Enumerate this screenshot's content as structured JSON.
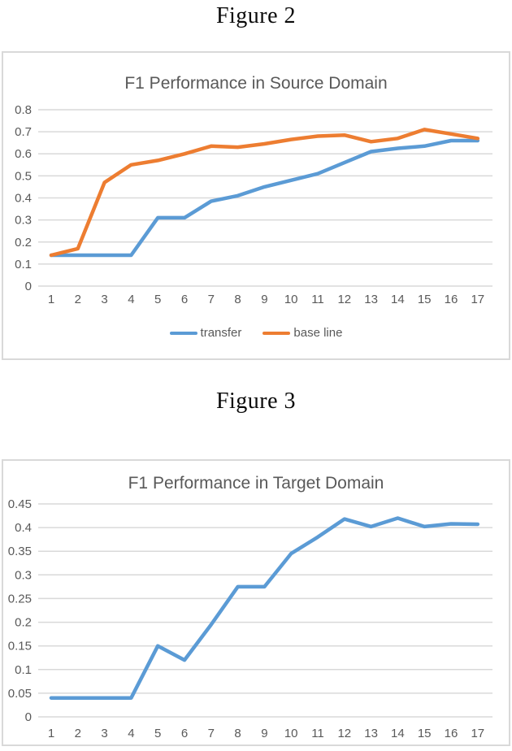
{
  "captions": {
    "figure2": "Figure 2",
    "figure3": "Figure 3"
  },
  "colors": {
    "transfer_blue": "#5B9BD5",
    "baseline_orange": "#ED7D31",
    "gridline": "#D9D9D9",
    "axis_text": "#595959",
    "title_text": "#595959",
    "chart_border": "#D9D9D9"
  },
  "chart_data": [
    {
      "type": "line",
      "title": "F1 Performance in Source Domain",
      "x": [
        1,
        2,
        3,
        4,
        5,
        6,
        7,
        8,
        9,
        10,
        11,
        12,
        13,
        14,
        15,
        16,
        17
      ],
      "series": [
        {
          "name": "transfer",
          "color": "#5B9BD5",
          "values": [
            0.14,
            0.14,
            0.14,
            0.14,
            0.31,
            0.31,
            0.385,
            0.41,
            0.45,
            0.48,
            0.51,
            0.56,
            0.61,
            0.625,
            0.635,
            0.66,
            0.66
          ]
        },
        {
          "name": "base line",
          "color": "#ED7D31",
          "values": [
            0.14,
            0.17,
            0.47,
            0.55,
            0.57,
            0.6,
            0.635,
            0.63,
            0.645,
            0.665,
            0.68,
            0.685,
            0.655,
            0.67,
            0.71,
            0.69,
            0.67
          ]
        }
      ],
      "xlabel": "",
      "ylabel": "",
      "ylim": [
        0,
        0.8
      ],
      "ytick_step": 0.1,
      "ytick_labels": [
        "0.8",
        "0.7",
        "0.6",
        "0.5",
        "0.4",
        "0.3",
        "0.2",
        "0.1",
        "0"
      ],
      "grid": true,
      "legend_position": "bottom"
    },
    {
      "type": "line",
      "title": "F1 Performance in Target Domain",
      "x": [
        1,
        2,
        3,
        4,
        5,
        6,
        7,
        8,
        9,
        10,
        11,
        12,
        13,
        14,
        15,
        16,
        17
      ],
      "series": [
        {
          "name": "transfer",
          "color": "#5B9BD5",
          "values": [
            0.04,
            0.04,
            0.04,
            0.04,
            0.15,
            0.12,
            0.195,
            0.275,
            0.275,
            0.345,
            0.38,
            0.418,
            0.402,
            0.42,
            0.402,
            0.408,
            0.407
          ]
        }
      ],
      "xlabel": "",
      "ylabel": "",
      "ylim": [
        0,
        0.45
      ],
      "ytick_step": 0.05,
      "ytick_labels": [
        "0.45",
        "0.4",
        "0.35",
        "0.3",
        "0.25",
        "0.2",
        "0.15",
        "0.1",
        "0.05",
        "0"
      ],
      "grid": true,
      "legend_position": "none"
    }
  ]
}
